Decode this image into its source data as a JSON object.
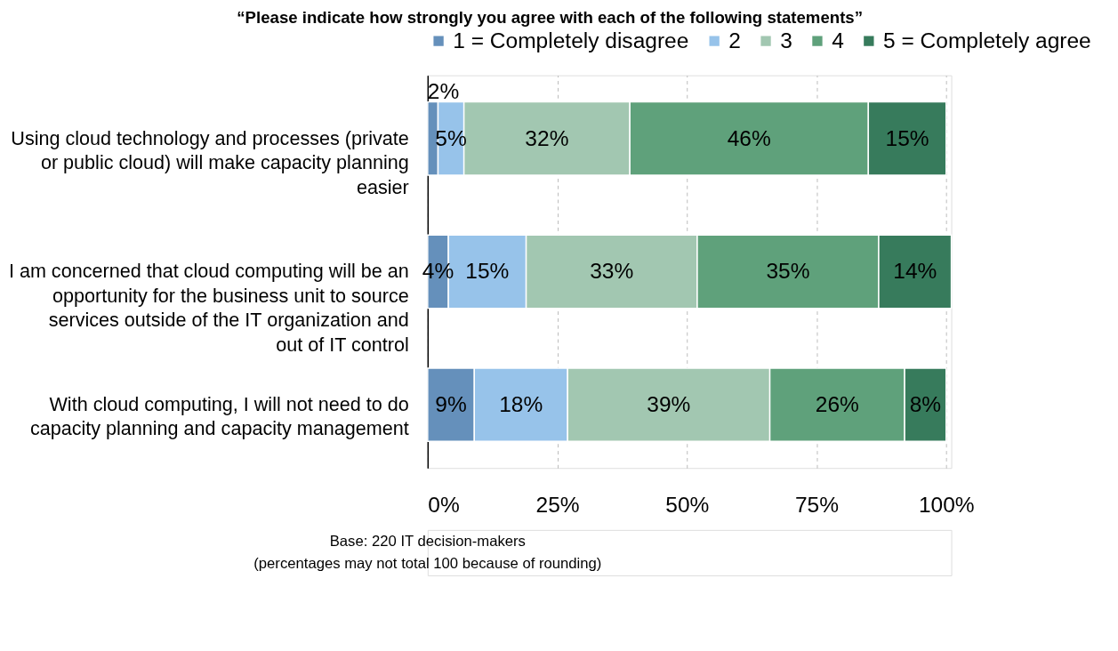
{
  "chart_data": {
    "type": "bar",
    "orientation": "horizontal",
    "stacked": true,
    "title": "“Please indicate how strongly you agree with each of the following statements”",
    "categories": [
      "Using cloud technology and processes (private or public cloud) will make capacity planning easier",
      "I am concerned that cloud computing will be an opportunity for the business unit to source services outside of the IT organization and out of IT control",
      "With cloud computing, I will not need to do capacity planning and capacity management"
    ],
    "series": [
      {
        "name": "1 = Completely disagree",
        "color": "#6590bb",
        "values": [
          2,
          4,
          9
        ],
        "value_labels": [
          "2%",
          "4%",
          "9%"
        ]
      },
      {
        "name": "2",
        "color": "#97c3ea",
        "values": [
          5,
          15,
          18
        ],
        "value_labels": [
          "5%",
          "15%",
          "18%"
        ]
      },
      {
        "name": "3",
        "color": "#a2c7b1",
        "values": [
          32,
          33,
          39
        ],
        "value_labels": [
          "32%",
          "33%",
          "39%"
        ]
      },
      {
        "name": "4",
        "color": "#5fa17b",
        "values": [
          46,
          35,
          26
        ],
        "value_labels": [
          "46%",
          "35%",
          "26%"
        ]
      },
      {
        "name": "5 = Completely agree",
        "color": "#377b5c",
        "values": [
          15,
          14,
          8
        ],
        "value_labels": [
          "15%",
          "14%",
          "8%"
        ]
      }
    ],
    "xlim": [
      0,
      101
    ],
    "xticks": [
      {
        "value": 0,
        "label": "0%"
      },
      {
        "value": 25,
        "label": "25%"
      },
      {
        "value": 50,
        "label": "50%"
      },
      {
        "value": 75,
        "label": "75%"
      },
      {
        "value": 100,
        "label": "100%"
      }
    ],
    "grid": "x",
    "legend": "top",
    "annotations": [
      "Base: 220 IT decision-makers",
      "(percentages may not total 100 because of rounding)"
    ]
  }
}
